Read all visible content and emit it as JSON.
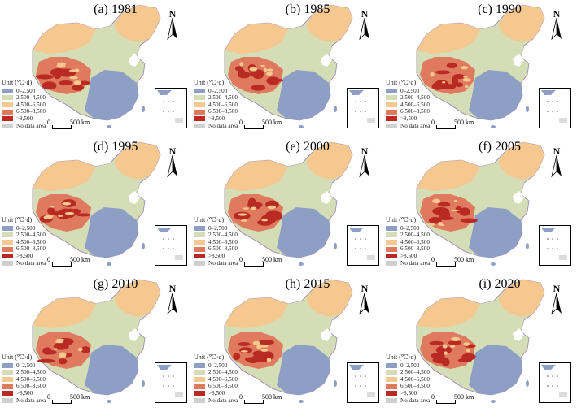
{
  "panels": [
    {
      "title": "(a) 1981",
      "seed": 1
    },
    {
      "title": "(b) 1985",
      "seed": 2
    },
    {
      "title": "(c) 1990",
      "seed": 3
    },
    {
      "title": "(d) 1995",
      "seed": 4
    },
    {
      "title": "(e) 2000",
      "seed": 5
    },
    {
      "title": "(f) 2005",
      "seed": 6
    },
    {
      "title": "(g) 2010",
      "seed": 7
    },
    {
      "title": "(h) 2015",
      "seed": 8
    },
    {
      "title": "(i) 2020",
      "seed": 9
    }
  ],
  "legend": {
    "unit": "Unit (℃·d)",
    "items": [
      {
        "label": "0–2,500",
        "color": "#8e9fc6"
      },
      {
        "label": "2,500–4,500",
        "color": "#d4ddb5"
      },
      {
        "label": "4,500–6,500",
        "color": "#f4c88e"
      },
      {
        "label": "6,500–8,500",
        "color": "#e07a5f"
      },
      {
        "label": ">8,500",
        "color": "#b82a22"
      },
      {
        "label": "No data area",
        "color": "#cfcfcf"
      }
    ]
  },
  "scale": {
    "zero": "0",
    "distance": "500 km"
  },
  "north": "N"
}
